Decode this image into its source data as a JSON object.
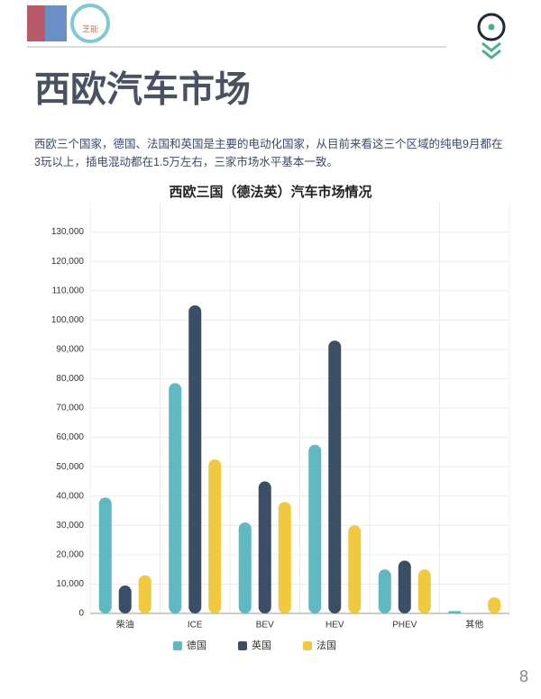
{
  "header": {
    "logo_text": "芝能"
  },
  "title": "西欧汽车市场",
  "paragraph": "西欧三个国家，德国、法国和英国是主要的电动化国家，从目前来看这三个区域的纯电9月都在3玩以上，插电混动都在1.5万左右，三家市场水平基本一致。",
  "chart_data": {
    "type": "bar",
    "title": "西欧三国（德法英）汽车市场情况",
    "categories": [
      "柴油",
      "ICE",
      "BEV",
      "HEV",
      "PHEV",
      "其他"
    ],
    "series": [
      {
        "name": "德国",
        "color": "#5fb8c2",
        "values": [
          39500,
          78500,
          31000,
          57500,
          15000,
          800
        ]
      },
      {
        "name": "英国",
        "color": "#3a4f66",
        "values": [
          9500,
          105000,
          45000,
          93000,
          18000,
          0
        ]
      },
      {
        "name": "法国",
        "color": "#f0c93e",
        "values": [
          13000,
          52500,
          38000,
          30000,
          15000,
          5500
        ]
      }
    ],
    "ylim": [
      0,
      140000
    ],
    "yticks": [
      0,
      {
        "value": 10000,
        "label": "10,000"
      },
      {
        "value": 20000,
        "label": "20,000"
      },
      {
        "value": 30000,
        "label": "30,000"
      },
      {
        "value": 40000,
        "label": "40,000"
      },
      {
        "value": 50000,
        "label": "50,000"
      },
      {
        "value": 60000,
        "label": "60,000"
      },
      {
        "value": 70000,
        "label": "70,000"
      },
      {
        "value": 80000,
        "label": "80,000"
      },
      {
        "value": 90000,
        "label": "90,000"
      },
      {
        "value": 100000,
        "label": "100,000"
      },
      {
        "value": 110000,
        "label": "110,000"
      },
      {
        "value": 120000,
        "label": "120,000"
      },
      {
        "value": 130000,
        "label": "130,000"
      }
    ],
    "grid": true,
    "legend": "bottom"
  },
  "page_number": 8
}
